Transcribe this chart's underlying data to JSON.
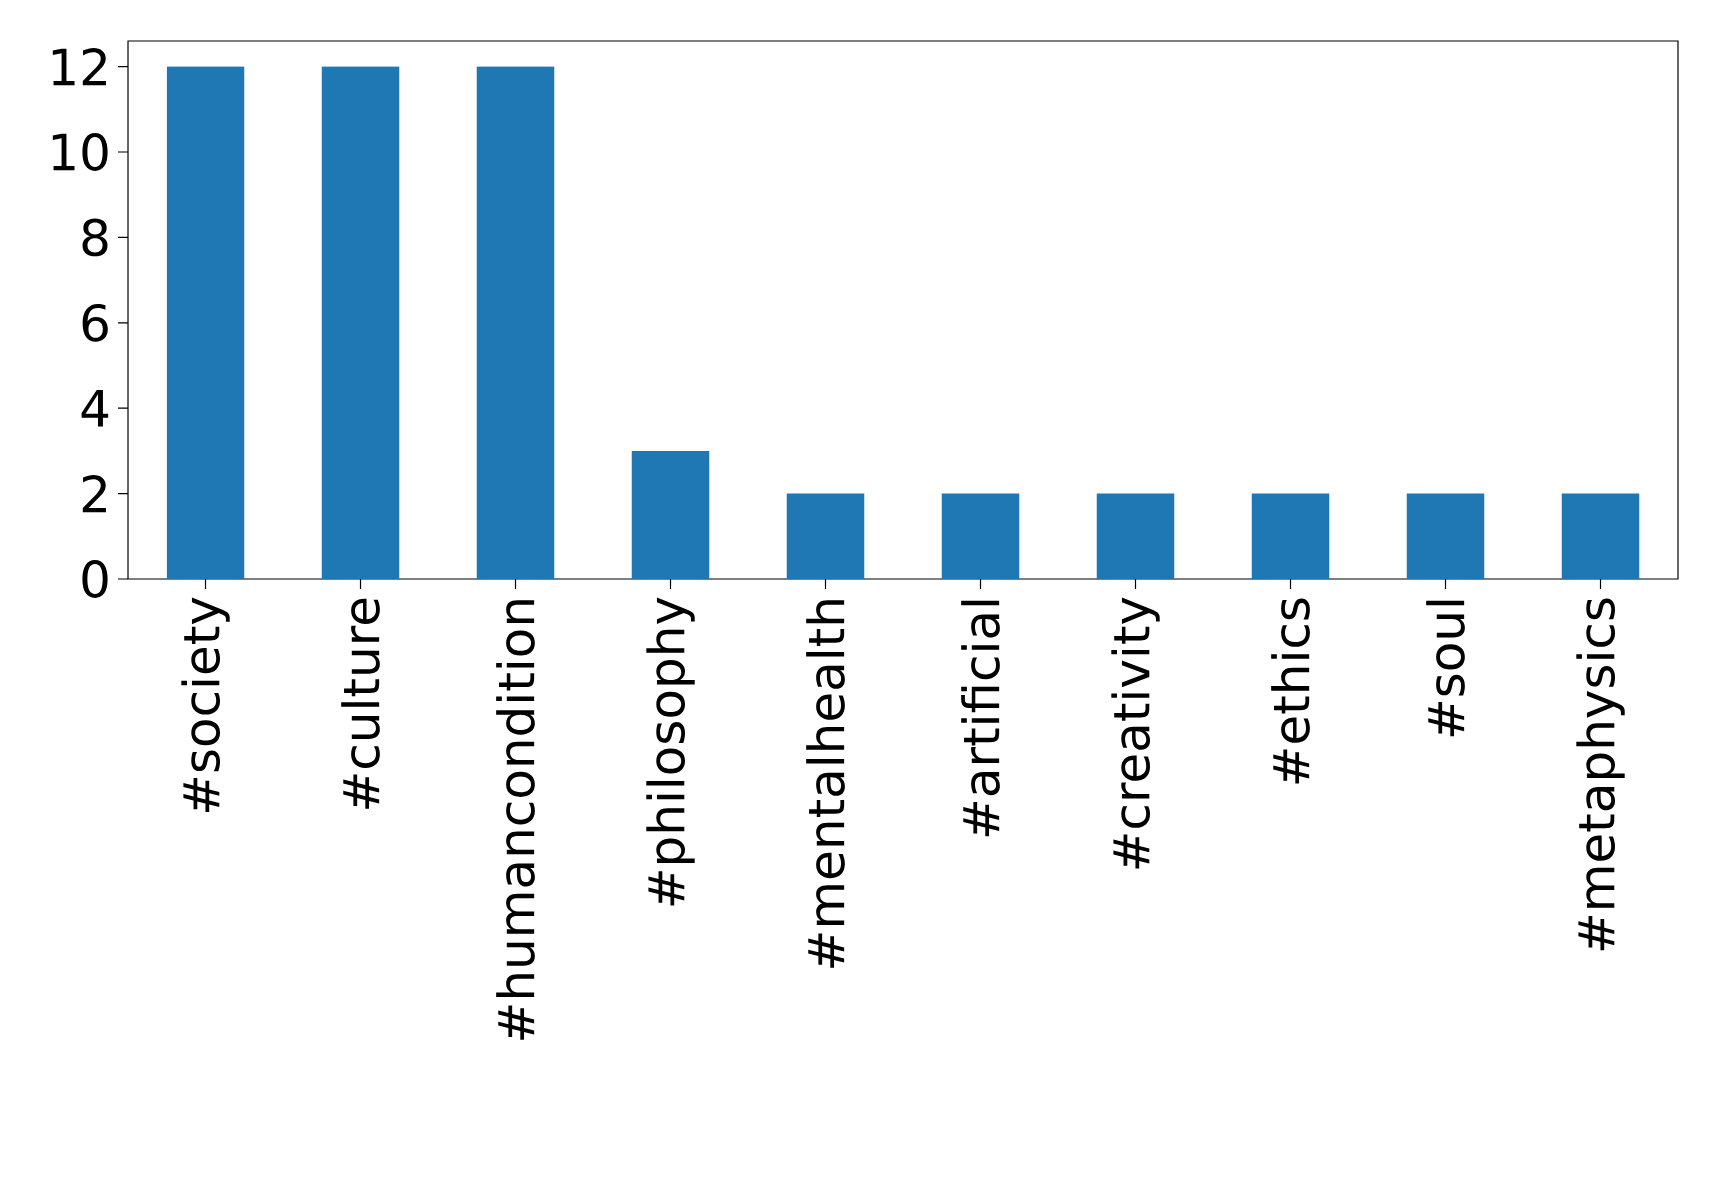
{
  "chart_data": {
    "type": "bar",
    "categories": [
      "#society",
      "#culture",
      "#humancondition",
      "#philosophy",
      "#mentalhealth",
      "#artificial",
      "#creativity",
      "#ethics",
      "#soul",
      "#metaphysics"
    ],
    "values": [
      12,
      12,
      12,
      3,
      2,
      2,
      2,
      2,
      2,
      2
    ],
    "color": "#1f77b4",
    "ylim": [
      0,
      12.6
    ],
    "yticks": [
      0,
      2,
      4,
      6,
      8,
      10,
      12
    ],
    "grid": false
  }
}
